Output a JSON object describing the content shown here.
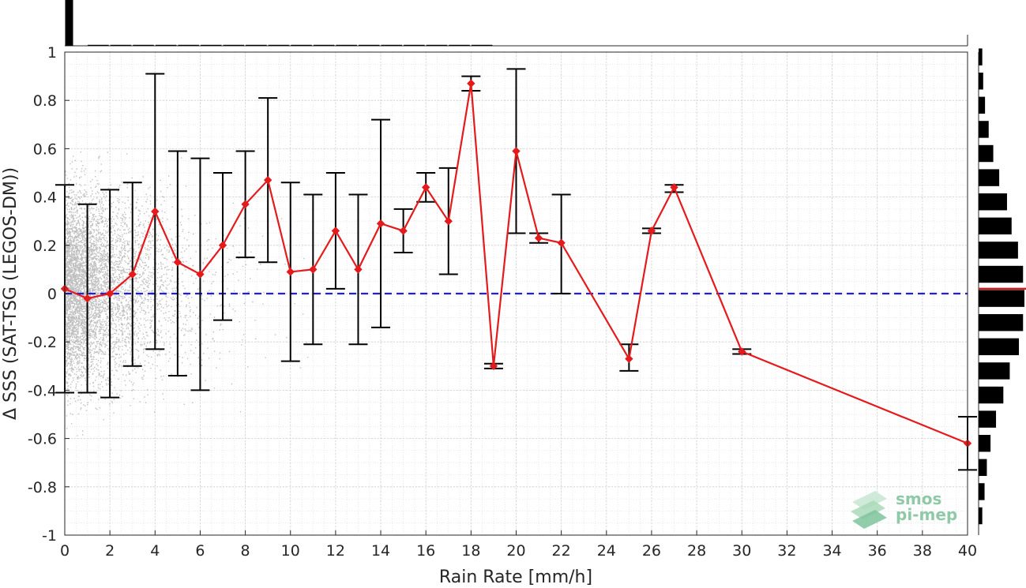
{
  "chart_data": {
    "type": "line",
    "xlabel": "Rain Rate [mm/h]",
    "ylabel": "Δ SSS (SAT-TSG (LEGOS-DM))",
    "xlim": [
      0,
      40
    ],
    "ylim": [
      -1,
      1
    ],
    "x_ticks": [
      0,
      2,
      4,
      6,
      8,
      10,
      12,
      14,
      16,
      18,
      20,
      22,
      24,
      26,
      28,
      30,
      32,
      34,
      36,
      38,
      40
    ],
    "y_ticks": [
      1,
      0.8,
      0.6,
      0.4,
      0.2,
      0,
      -0.2,
      -0.4,
      -0.6,
      -0.8,
      -1
    ],
    "grid": true,
    "reference_line": {
      "y": 0,
      "color": "#1f1fdc",
      "style": "dashed"
    },
    "series": [
      {
        "color": "#e41a1c",
        "points": [
          {
            "x": 0,
            "y": 0.02,
            "lo": -0.41,
            "hi": 0.45
          },
          {
            "x": 1,
            "y": -0.02,
            "lo": -0.41,
            "hi": 0.37
          },
          {
            "x": 2,
            "y": 0.0,
            "lo": -0.43,
            "hi": 0.43
          },
          {
            "x": 3,
            "y": 0.08,
            "lo": -0.3,
            "hi": 0.46
          },
          {
            "x": 4,
            "y": 0.34,
            "lo": -0.23,
            "hi": 0.91
          },
          {
            "x": 5,
            "y": 0.13,
            "lo": -0.34,
            "hi": 0.59
          },
          {
            "x": 6,
            "y": 0.08,
            "lo": -0.4,
            "hi": 0.56
          },
          {
            "x": 7,
            "y": 0.2,
            "lo": -0.11,
            "hi": 0.5
          },
          {
            "x": 8,
            "y": 0.37,
            "lo": 0.15,
            "hi": 0.59
          },
          {
            "x": 9,
            "y": 0.47,
            "lo": 0.13,
            "hi": 0.81
          },
          {
            "x": 10,
            "y": 0.09,
            "lo": -0.28,
            "hi": 0.46
          },
          {
            "x": 11,
            "y": 0.1,
            "lo": -0.21,
            "hi": 0.41
          },
          {
            "x": 12,
            "y": 0.26,
            "lo": 0.02,
            "hi": 0.5
          },
          {
            "x": 13,
            "y": 0.1,
            "lo": -0.21,
            "hi": 0.41
          },
          {
            "x": 14,
            "y": 0.29,
            "lo": -0.14,
            "hi": 0.72
          },
          {
            "x": 15,
            "y": 0.26,
            "lo": 0.17,
            "hi": 0.35
          },
          {
            "x": 16,
            "y": 0.44,
            "lo": 0.38,
            "hi": 0.5
          },
          {
            "x": 17,
            "y": 0.3,
            "lo": 0.08,
            "hi": 0.52
          },
          {
            "x": 18,
            "y": 0.87,
            "lo": 0.84,
            "hi": 0.9
          },
          {
            "x": 19,
            "y": -0.3,
            "lo": -0.31,
            "hi": -0.29
          },
          {
            "x": 20,
            "y": 0.59,
            "lo": 0.25,
            "hi": 0.93
          },
          {
            "x": 21,
            "y": 0.23,
            "lo": 0.21,
            "hi": 0.25
          },
          {
            "x": 22,
            "y": 0.21,
            "lo": 0.0,
            "hi": 0.41
          },
          {
            "x": 25,
            "y": -0.27,
            "lo": -0.32,
            "hi": -0.21
          },
          {
            "x": 26,
            "y": 0.26,
            "lo": 0.25,
            "hi": 0.27
          },
          {
            "x": 27,
            "y": 0.44,
            "lo": 0.42,
            "hi": 0.45
          },
          {
            "x": 30,
            "y": -0.24,
            "lo": -0.25,
            "hi": -0.23
          },
          {
            "x": 40,
            "y": -0.62,
            "lo": -0.73,
            "hi": -0.51
          }
        ]
      }
    ],
    "top_histogram": {
      "bins": [
        0,
        1,
        2,
        3,
        4,
        5,
        6,
        7,
        8,
        9,
        10,
        11,
        12,
        13,
        14,
        15,
        16,
        17,
        18
      ],
      "relative_counts": [
        1.0,
        0.02,
        0.01,
        0.008,
        0.006,
        0.005,
        0.004,
        0.003,
        0.003,
        0.002,
        0.002,
        0.002,
        0.002,
        0.002,
        0.002,
        0.001,
        0.001,
        0.001,
        0.001
      ]
    },
    "right_histogram": {
      "bin_centers": [
        0.98,
        0.88,
        0.78,
        0.68,
        0.58,
        0.48,
        0.38,
        0.28,
        0.18,
        0.08,
        -0.02,
        -0.12,
        -0.22,
        -0.32,
        -0.42,
        -0.52,
        -0.62,
        -0.72,
        -0.82,
        -0.92
      ],
      "relative_counts": [
        0.08,
        0.1,
        0.14,
        0.22,
        0.32,
        0.45,
        0.62,
        0.72,
        0.86,
        0.97,
        1.0,
        0.97,
        0.88,
        0.68,
        0.54,
        0.38,
        0.26,
        0.18,
        0.13,
        0.08
      ],
      "median_line": {
        "y": 0.02,
        "color": "#d01c1c"
      }
    },
    "scatter_color": "#8a8a8a"
  },
  "logo": {
    "line1": "smos",
    "line2": "pi-mep"
  }
}
